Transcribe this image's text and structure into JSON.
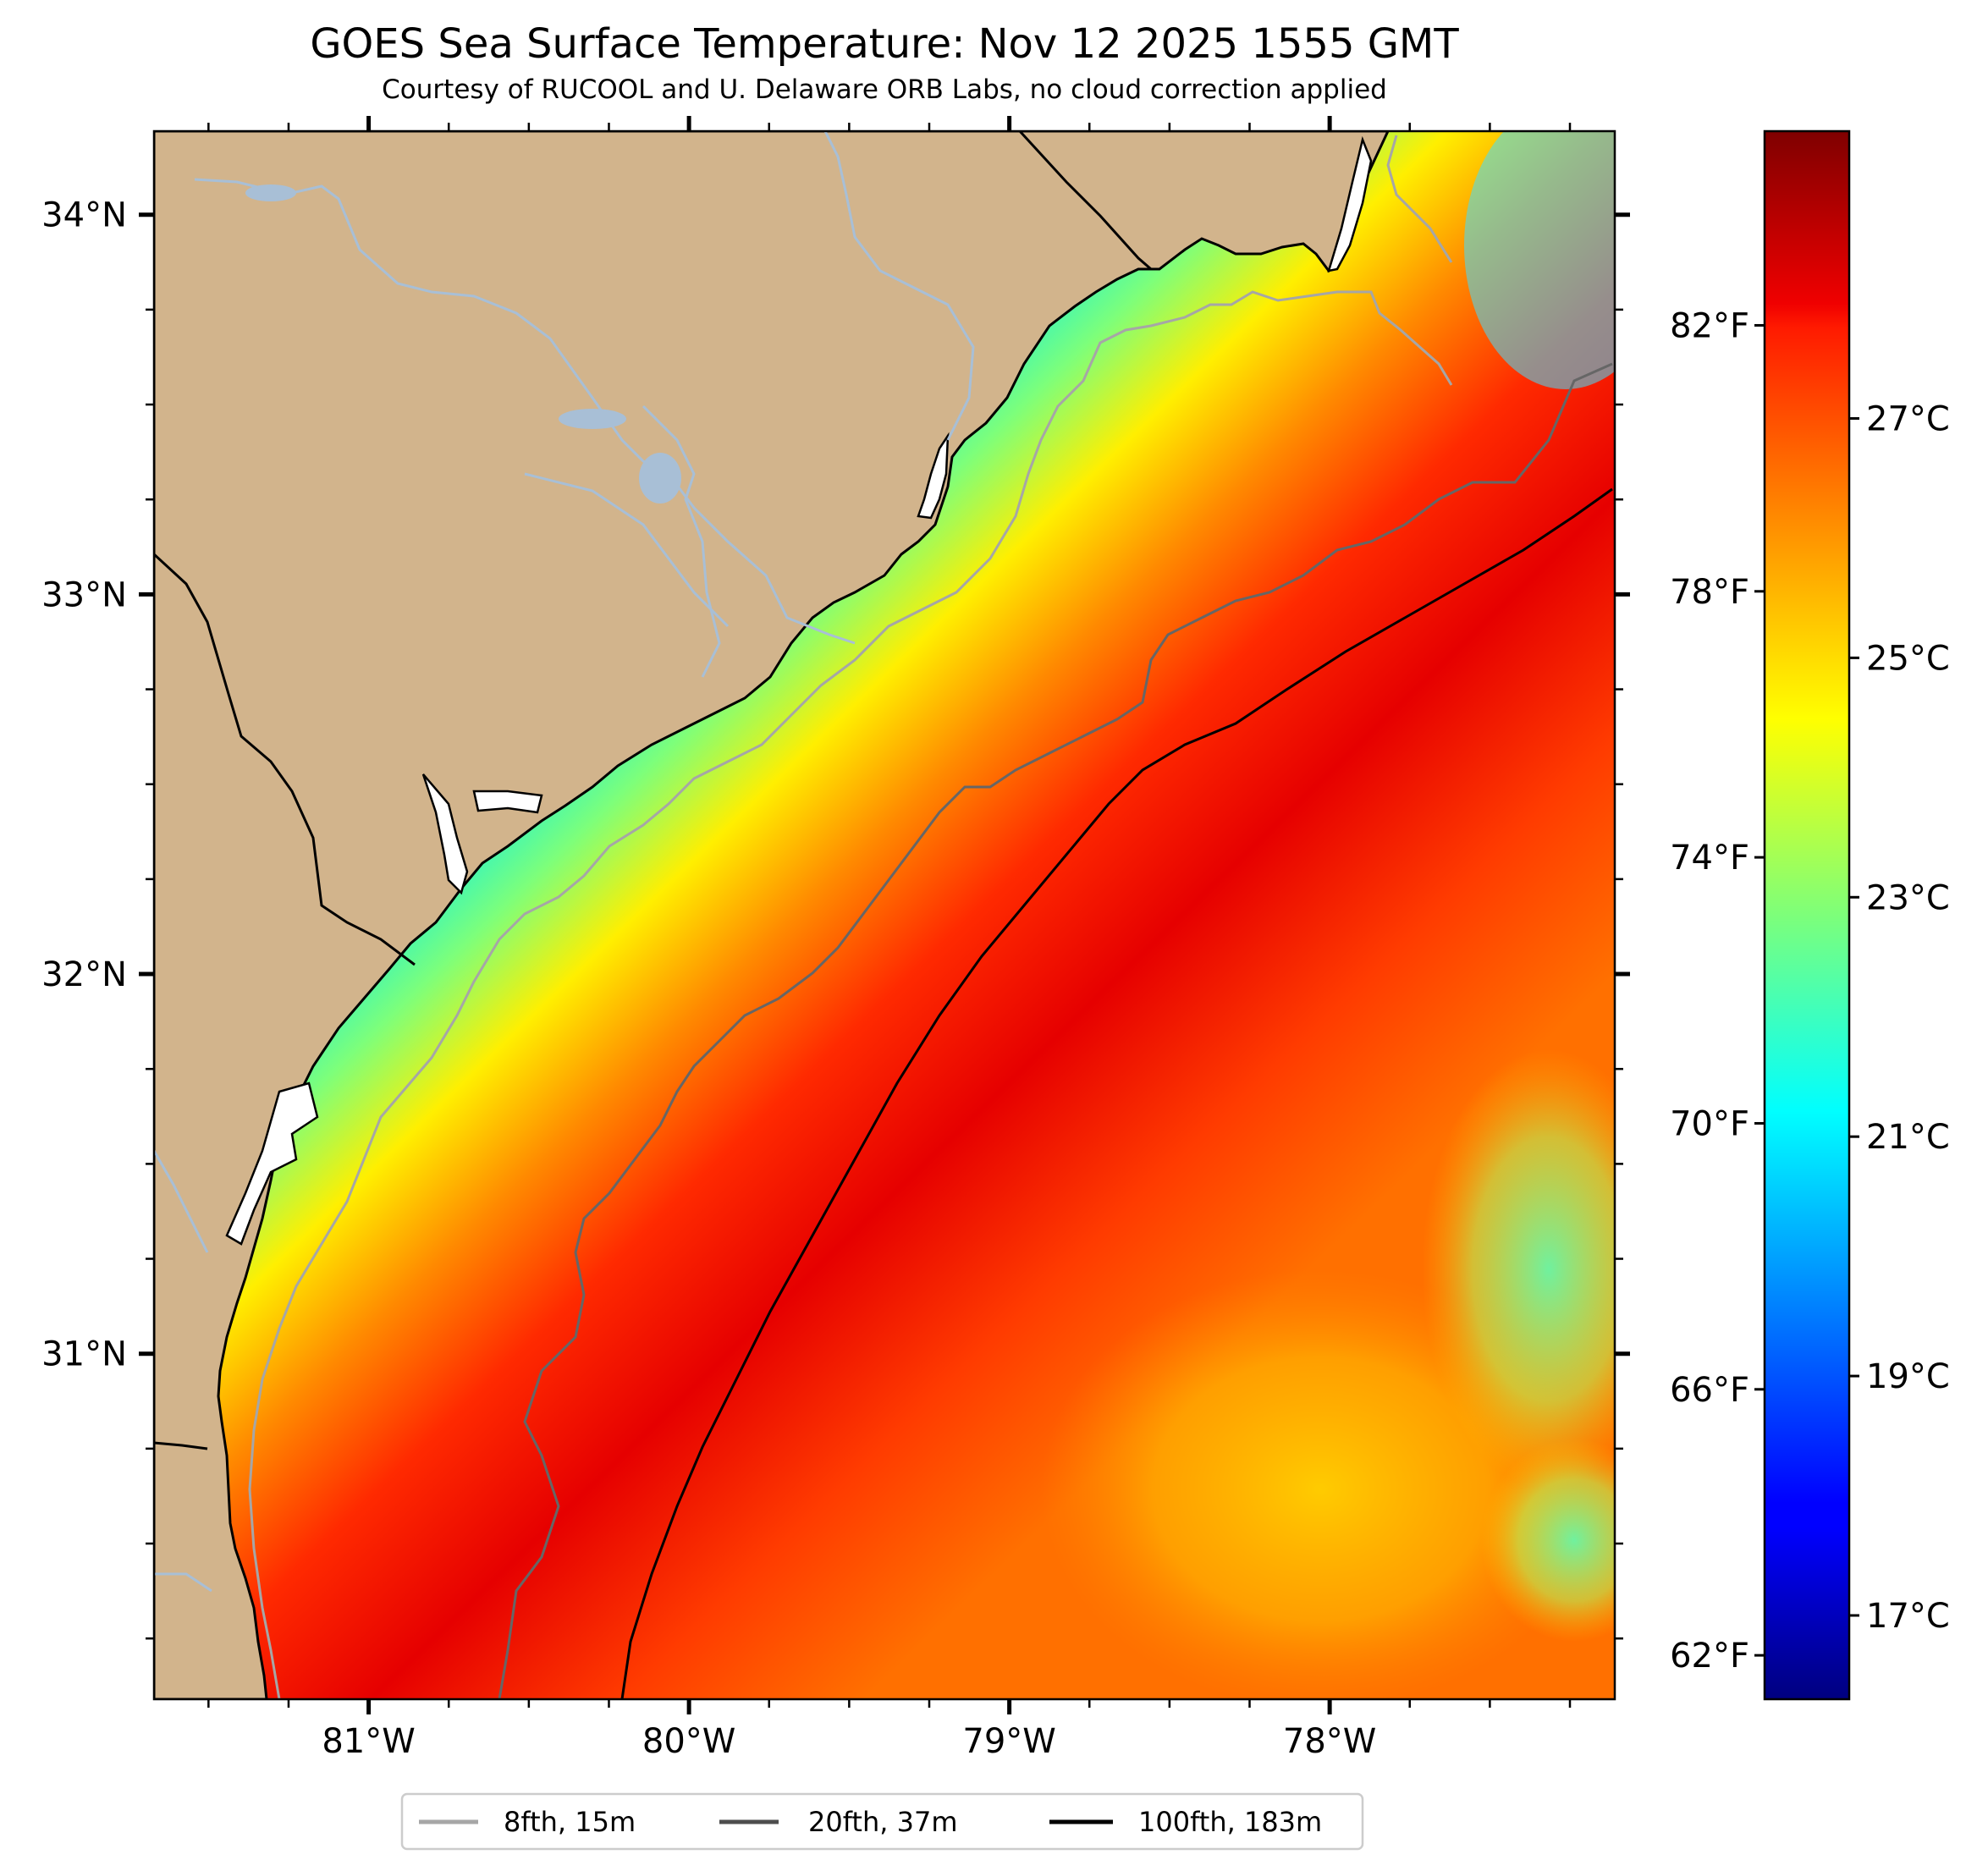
{
  "title": "GOES Sea Surface Temperature: Nov 12 2025 1555 GMT",
  "subtitle": "Courtesy of RUCOOL and U. Delaware ORB Labs, no cloud correction applied",
  "map": {
    "lon_range": [
      -81.67,
      -77.11
    ],
    "lat_range": [
      30.09,
      34.22
    ],
    "x_ticks": [
      {
        "value": -81,
        "label": "81°W"
      },
      {
        "value": -80,
        "label": "80°W"
      },
      {
        "value": -79,
        "label": "79°W"
      },
      {
        "value": -78,
        "label": "78°W"
      }
    ],
    "y_ticks": [
      {
        "value": 34,
        "label": "34°N"
      },
      {
        "value": 33,
        "label": "33°N"
      },
      {
        "value": 32,
        "label": "32°N"
      },
      {
        "value": 31,
        "label": "31°N"
      }
    ],
    "land_color": "#d2b48c",
    "river_color": "#a8bfd6"
  },
  "colorbar": {
    "colormap": "jet",
    "celsius_range": [
      16.3,
      29.4
    ],
    "fahrenheit_ticks": [
      {
        "value": 62,
        "label": "62°F"
      },
      {
        "value": 66,
        "label": "66°F"
      },
      {
        "value": 70,
        "label": "70°F"
      },
      {
        "value": 74,
        "label": "74°F"
      },
      {
        "value": 78,
        "label": "78°F"
      },
      {
        "value": 82,
        "label": "82°F"
      }
    ],
    "celsius_ticks": [
      {
        "value": 17,
        "label": "17°C"
      },
      {
        "value": 19,
        "label": "19°C"
      },
      {
        "value": 21,
        "label": "21°C"
      },
      {
        "value": 23,
        "label": "23°C"
      },
      {
        "value": 25,
        "label": "25°C"
      },
      {
        "value": 27,
        "label": "27°C"
      }
    ]
  },
  "legend": {
    "items": [
      {
        "label": "8fth, 15m",
        "color": "#a6a6a6"
      },
      {
        "label": "20fth, 37m",
        "color": "#4d4d4d"
      },
      {
        "label": "100fth, 183m",
        "color": "#000000"
      }
    ]
  }
}
